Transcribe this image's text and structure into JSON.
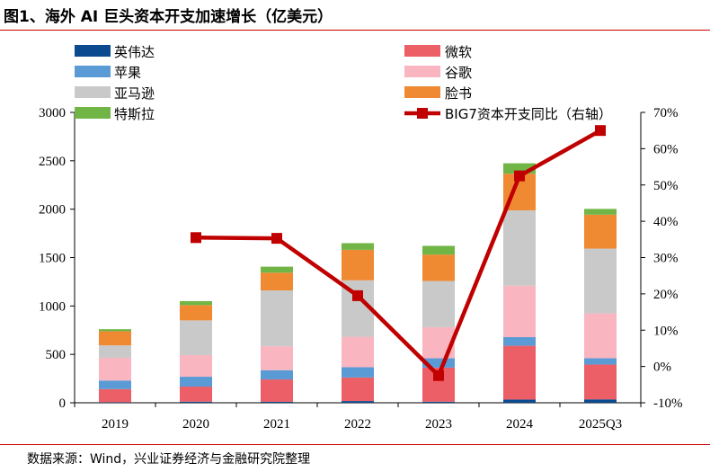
{
  "title": "图1、海外 AI 巨头资本开支加速增长（亿美元）",
  "source": "数据来源：Wind，兴业证券经济与金融研究院整理",
  "colors": {
    "nvidia": "#0b4a8e",
    "apple": "#5b9bd5",
    "amazon": "#c9c9c9",
    "tesla": "#70b546",
    "microsoft": "#ec5f67",
    "google": "#f9b6c1",
    "meta": "#ef8a32",
    "yoy": "#c00000"
  },
  "chart_data": {
    "type": "bar",
    "stacked": true,
    "categories": [
      "2019",
      "2020",
      "2021",
      "2022",
      "2023",
      "2024",
      "2025Q3"
    ],
    "ylim": [
      0,
      3000
    ],
    "y_ticks": [
      "0",
      "500",
      "1000",
      "1500",
      "2000",
      "2500",
      "3000"
    ],
    "y2lim": [
      -10,
      70
    ],
    "y2_ticks": [
      "-10%",
      "0%",
      "10%",
      "20%",
      "30%",
      "40%",
      "50%",
      "60%",
      "70%"
    ],
    "series": [
      {
        "key": "nvidia",
        "name": "英伟达",
        "values": [
          5,
          11,
          10,
          18,
          11,
          33,
          35
        ]
      },
      {
        "key": "microsoft",
        "name": "微软",
        "values": [
          136,
          156,
          231,
          243,
          352,
          556,
          360
        ]
      },
      {
        "key": "apple",
        "name": "苹果",
        "values": [
          89,
          102,
          96,
          106,
          97,
          89,
          65
        ]
      },
      {
        "key": "google",
        "name": "谷歌",
        "values": [
          235,
          224,
          247,
          315,
          321,
          532,
          463
        ]
      },
      {
        "key": "amazon",
        "name": "亚马逊",
        "values": [
          128,
          358,
          577,
          583,
          477,
          778,
          670
        ]
      },
      {
        "key": "meta",
        "name": "脸书",
        "values": [
          146,
          158,
          183,
          315,
          273,
          379,
          350
        ]
      },
      {
        "key": "tesla",
        "name": "特斯拉",
        "values": [
          21,
          41,
          62,
          69,
          90,
          107,
          60
        ]
      }
    ],
    "line_series": {
      "key": "yoy",
      "name": "BIG7资本开支同比（右轴）",
      "axis": "right",
      "values": [
        null,
        35.5,
        35.3,
        19.5,
        -2.5,
        52.5,
        65.0
      ]
    }
  }
}
